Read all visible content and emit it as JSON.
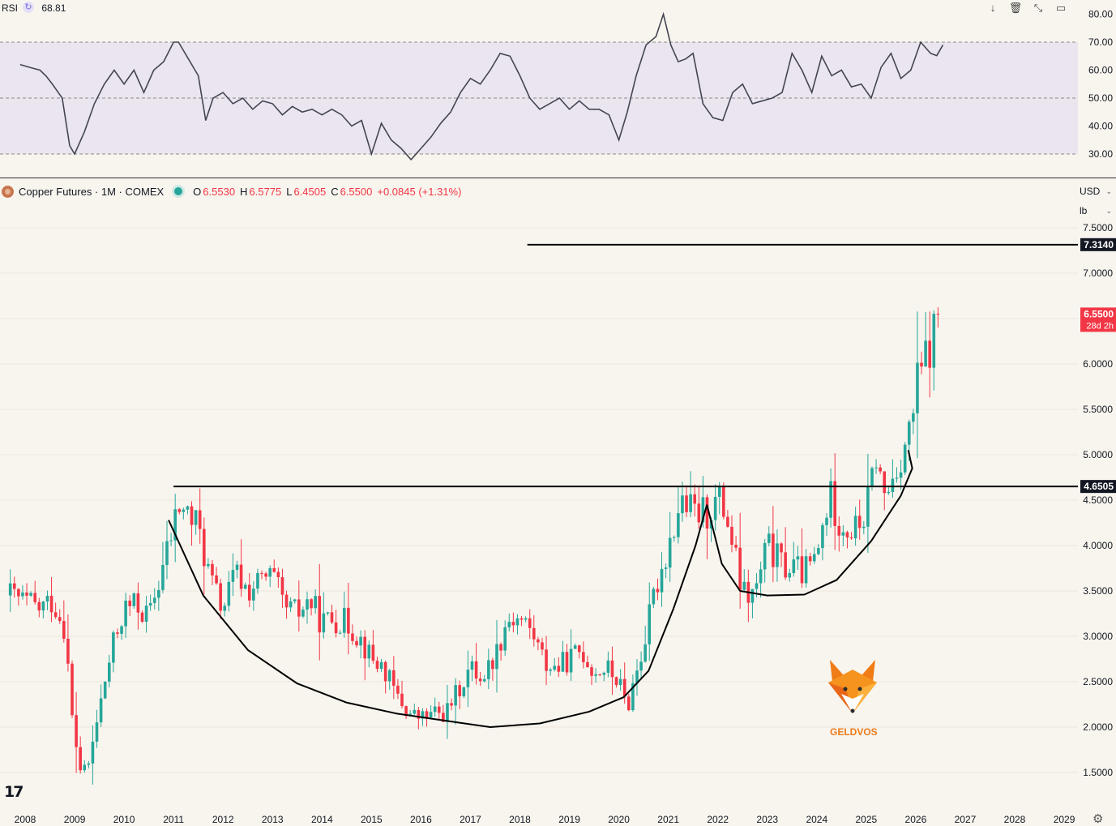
{
  "rsi_panel": {
    "label": "RSI",
    "value": "68.81",
    "tools": [
      "arrow-down-icon",
      "trash-icon",
      "collapse-icon",
      "maximize-icon"
    ],
    "overbought": 70,
    "oversold": 30,
    "midline": 50,
    "ticks": [
      "80.00",
      "70.00",
      "60.00",
      "50.00",
      "40.00",
      "30.00"
    ]
  },
  "header": {
    "symbol": "Copper Futures · 1M · COMEX",
    "o_label": "O",
    "o_value": "6.5530",
    "h_label": "H",
    "h_value": "6.5775",
    "l_label": "L",
    "l_value": "6.4505",
    "c_label": "C",
    "c_value": "6.5500",
    "change": "+0.0845 (+1.31%)"
  },
  "currency": "USD",
  "unit": "lb",
  "watermark": "GELDVOS",
  "colors": {
    "up": "#26a69a",
    "down": "#f23645",
    "rsi": "#434651",
    "band": "#ebe5ef",
    "background": "#f8f5ee"
  },
  "chart_data": {
    "type": "candlestick",
    "x_axis_labels": [
      "2008",
      "2009",
      "2010",
      "2011",
      "2012",
      "2013",
      "2014",
      "2015",
      "2016",
      "2017",
      "2018",
      "2019",
      "2020",
      "2021",
      "2022",
      "2023",
      "2024",
      "2025",
      "2026",
      "2027",
      "2028",
      "2029"
    ],
    "y_axis_labels": [
      "7.5000",
      "7.0000",
      "6.5000",
      "6.0000",
      "5.5000",
      "5.0000",
      "4.5000",
      "4.0000",
      "3.5000",
      "3.0000",
      "2.5000",
      "2.0000",
      "1.5000"
    ],
    "y_range": [
      1.24,
      7.8
    ],
    "x_range": [
      2008.0,
      2029.0
    ],
    "price_labels": [
      {
        "text": "7.3140",
        "value": 7.314
      },
      {
        "text": "6.5500",
        "value": 6.55,
        "sub": "28d 2h"
      },
      {
        "text": "4.6505",
        "value": 4.6505
      }
    ],
    "horizontal_lines": [
      {
        "value": 7.314,
        "from": 2018.15
      },
      {
        "value": 4.6505,
        "from": 2011.0
      }
    ],
    "anchors_x": [
      2007.7,
      2008.3,
      2008.55,
      2008.8,
      2008.95,
      2009.1,
      2009.25,
      2009.5,
      2009.75,
      2010.0,
      2010.25,
      2010.5,
      2010.75,
      2011.0,
      2011.1,
      2011.5,
      2011.75,
      2012.0,
      2012.25,
      2012.5,
      2012.75,
      2013.0,
      2013.25,
      2013.5,
      2013.75,
      2014.0,
      2014.25,
      2014.5,
      2014.75,
      2015.0,
      2015.25,
      2015.5,
      2015.75,
      2016.0,
      2016.25,
      2016.5,
      2016.75,
      2017.0,
      2017.25,
      2017.5,
      2017.75,
      2018.0,
      2018.25,
      2018.5,
      2018.75,
      2019.0,
      2019.25,
      2019.5,
      2019.75,
      2020.0,
      2020.17,
      2020.25,
      2020.5,
      2020.75,
      2021.0,
      2021.25,
      2021.5,
      2021.75,
      2022.0,
      2022.17,
      2022.5,
      2022.75,
      2023.0,
      2023.25,
      2023.5,
      2023.75,
      2024.0,
      2024.25,
      2024.5,
      2024.75,
      2025.0,
      2025.2,
      2025.35,
      2025.5,
      2025.75,
      2025.9,
      2026.0,
      2026.1,
      2026.2,
      2026.35,
      2026.5
    ],
    "anchors_close": [
      3.45,
      3.3,
      3.4,
      3.1,
      2.1,
      1.55,
      1.5,
      2.2,
      2.85,
      3.3,
      3.35,
      3.2,
      3.7,
      4.2,
      4.45,
      4.2,
      3.6,
      3.3,
      3.7,
      3.5,
      3.6,
      3.65,
      3.3,
      3.25,
      3.4,
      3.15,
      3.2,
      3.15,
      3.0,
      2.75,
      2.65,
      2.35,
      2.15,
      2.1,
      2.15,
      2.15,
      2.4,
      2.65,
      2.55,
      2.8,
      3.2,
      3.2,
      3.05,
      2.7,
      2.65,
      2.75,
      2.85,
      2.6,
      2.65,
      2.5,
      2.2,
      2.4,
      2.9,
      3.55,
      4.0,
      4.5,
      4.35,
      4.35,
      4.5,
      4.35,
      3.45,
      3.45,
      4.0,
      3.8,
      3.75,
      3.7,
      3.85,
      4.55,
      4.25,
      4.15,
      4.35,
      5.0,
      4.5,
      4.7,
      5.1,
      5.25,
      5.7,
      5.9,
      6.05,
      6.3,
      6.55
    ],
    "rsi_x": [
      2007.9,
      2008.3,
      2008.55,
      2008.75,
      2008.9,
      2009.0,
      2009.2,
      2009.4,
      2009.6,
      2009.8,
      2010.0,
      2010.2,
      2010.4,
      2010.6,
      2010.8,
      2011.0,
      2011.1,
      2011.3,
      2011.5,
      2011.65,
      2011.8,
      2012.0,
      2012.2,
      2012.4,
      2012.6,
      2012.8,
      2013.0,
      2013.2,
      2013.4,
      2013.6,
      2013.8,
      2014.0,
      2014.2,
      2014.4,
      2014.6,
      2014.8,
      2015.0,
      2015.2,
      2015.4,
      2015.6,
      2015.8,
      2016.0,
      2016.2,
      2016.4,
      2016.6,
      2016.8,
      2017.0,
      2017.2,
      2017.4,
      2017.6,
      2017.8,
      2018.0,
      2018.2,
      2018.4,
      2018.6,
      2018.8,
      2019.0,
      2019.2,
      2019.4,
      2019.6,
      2019.8,
      2020.0,
      2020.17,
      2020.35,
      2020.55,
      2020.75,
      2020.9,
      2021.05,
      2021.2,
      2021.35,
      2021.5,
      2021.7,
      2021.9,
      2022.1,
      2022.3,
      2022.5,
      2022.7,
      2022.9,
      2023.1,
      2023.3,
      2023.5,
      2023.7,
      2023.9,
      2024.1,
      2024.3,
      2024.5,
      2024.7,
      2024.9,
      2025.1,
      2025.3,
      2025.5,
      2025.7,
      2025.9,
      2026.1,
      2026.3,
      2026.55
    ],
    "rsi_values": [
      62,
      60,
      55,
      50,
      33,
      30,
      38,
      48,
      55,
      60,
      55,
      60,
      52,
      60,
      63,
      70,
      70,
      64,
      58,
      42,
      50,
      52,
      48,
      50,
      46,
      49,
      48,
      44,
      47,
      45,
      46,
      44,
      46,
      44,
      40,
      42,
      30,
      41,
      35,
      32,
      28,
      32,
      36,
      41,
      45,
      52,
      57,
      55,
      60,
      66,
      65,
      58,
      50,
      46,
      48,
      50,
      46,
      49,
      46,
      46,
      44,
      35,
      45,
      58,
      69,
      72,
      80,
      69,
      63,
      64,
      66,
      48,
      43,
      42,
      52,
      55,
      48,
      49,
      50,
      52,
      66,
      60,
      52,
      65,
      58,
      60,
      54,
      55,
      50,
      61,
      66,
      57,
      60,
      70,
      66,
      69
    ]
  }
}
